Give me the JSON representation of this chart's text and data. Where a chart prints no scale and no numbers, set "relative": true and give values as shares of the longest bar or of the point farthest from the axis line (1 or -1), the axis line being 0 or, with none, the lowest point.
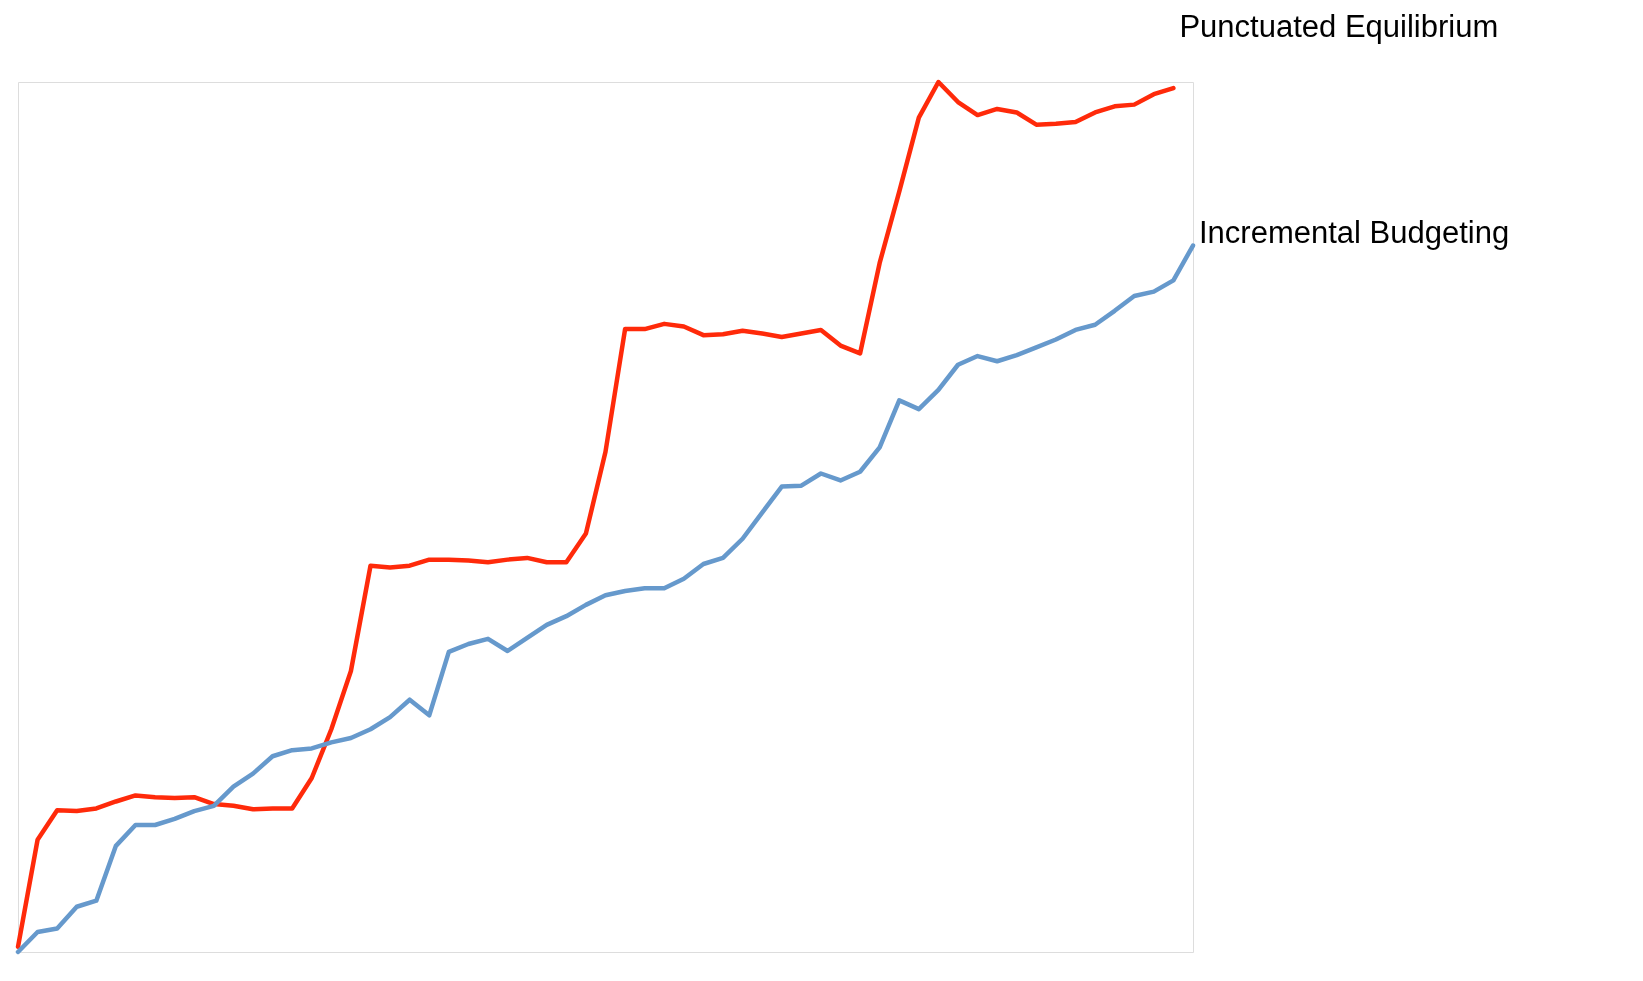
{
  "chart_data": {
    "type": "line",
    "relative": true,
    "legend": false,
    "grid": false,
    "marker": "none",
    "line_style": "solid",
    "categories": [
      null,
      null,
      null,
      null,
      null,
      null,
      null,
      null,
      null,
      null,
      null,
      null,
      null,
      null,
      null,
      null,
      null,
      null,
      null,
      null,
      null,
      null,
      null,
      null,
      null,
      null,
      null,
      null,
      null,
      null,
      null,
      null,
      null,
      null,
      null,
      null,
      null,
      null,
      null,
      null,
      null,
      null,
      null,
      null,
      null,
      null,
      null,
      null,
      null,
      null,
      null,
      null,
      null,
      null,
      null,
      null,
      null,
      null,
      null,
      null,
      null
    ],
    "series": [
      {
        "name": "Punctuated Equilibrium",
        "color": "#ff2a0a",
        "values": [
          0.006,
          0.129,
          0.163,
          0.162,
          0.165,
          0.173,
          0.18,
          0.178,
          0.177,
          0.178,
          0.17,
          0.168,
          0.164,
          0.165,
          0.165,
          0.2,
          0.256,
          0.323,
          0.444,
          0.442,
          0.444,
          0.451,
          0.451,
          0.45,
          0.448,
          0.451,
          0.453,
          0.448,
          0.448,
          0.481,
          0.575,
          0.716,
          0.716,
          0.722,
          0.719,
          0.709,
          0.71,
          0.714,
          0.711,
          0.707,
          0.711,
          0.715,
          0.697,
          0.688,
          0.792,
          0.874,
          0.959,
          1.0,
          0.977,
          0.962,
          0.969,
          0.965,
          0.951,
          0.952,
          0.954,
          0.965,
          0.972,
          0.974,
          0.986,
          0.993,
          null
        ]
      },
      {
        "name": "Incremental Budgeting",
        "color": "#6699cc",
        "values": [
          0,
          0.023,
          0.027,
          0.052,
          0.059,
          0.122,
          0.146,
          0.146,
          0.153,
          0.162,
          0.168,
          0.19,
          0.205,
          0.225,
          0.232,
          0.234,
          0.241,
          0.246,
          0.256,
          0.27,
          0.29,
          0.272,
          0.345,
          0.354,
          0.36,
          0.346,
          0.361,
          0.376,
          0.386,
          0.399,
          0.41,
          0.415,
          0.418,
          0.418,
          0.429,
          0.446,
          0.453,
          0.475,
          0.505,
          0.535,
          0.536,
          0.55,
          0.542,
          0.552,
          0.58,
          0.634,
          0.624,
          0.646,
          0.675,
          0.685,
          0.679,
          0.686,
          0.695,
          0.704,
          0.715,
          0.721,
          0.737,
          0.754,
          0.759,
          0.772,
          0.812
        ]
      }
    ]
  }
}
